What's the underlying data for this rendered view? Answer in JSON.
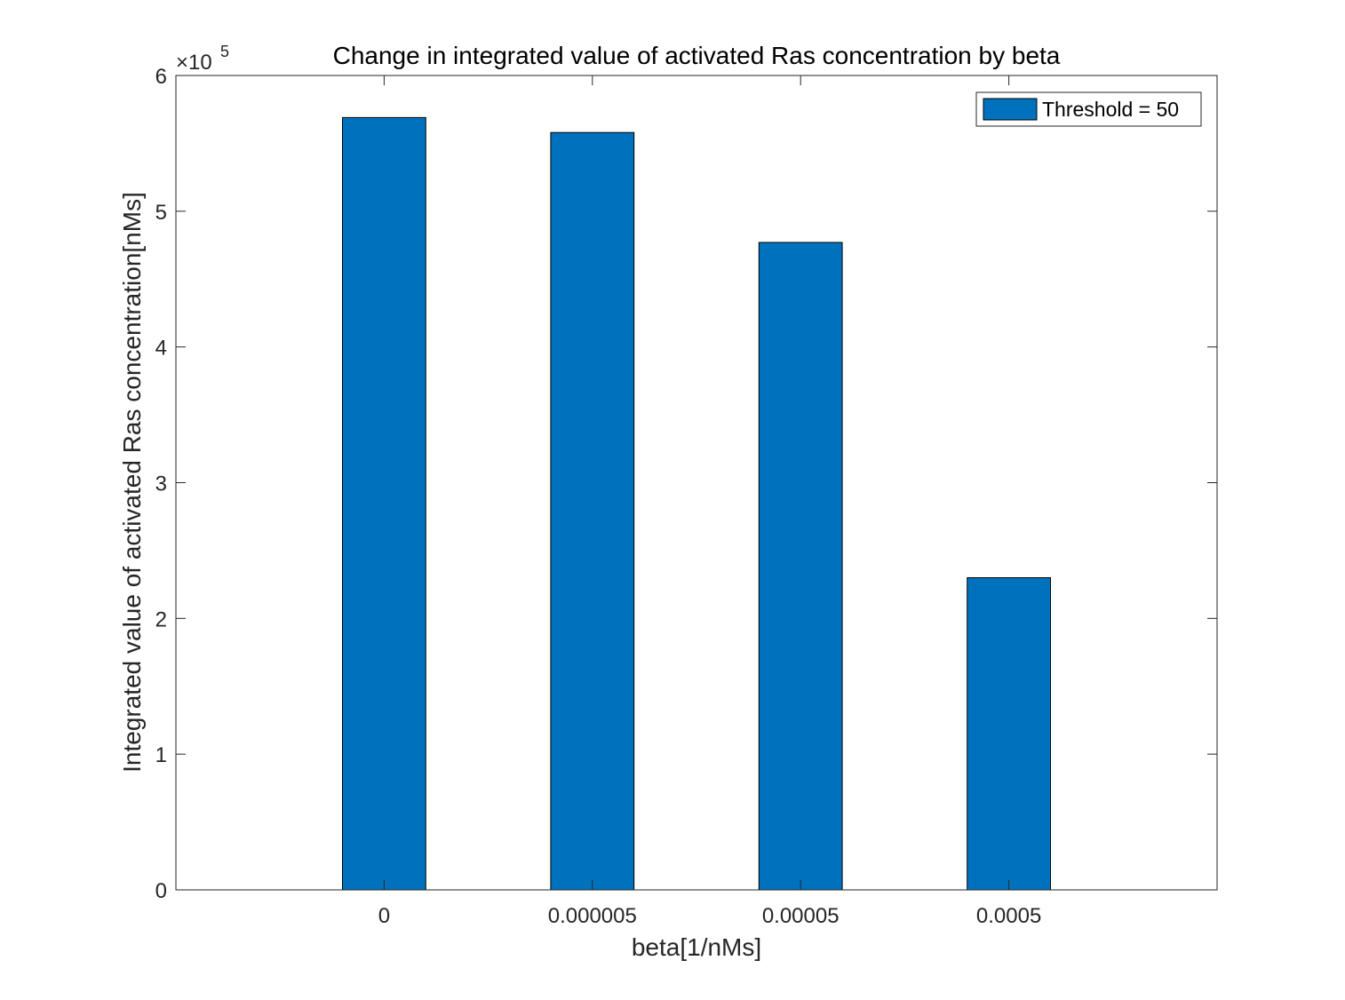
{
  "chart_data": {
    "type": "bar",
    "title": "Change in integrated value of activated Ras concentration by beta",
    "xlabel": "beta[1/nMs]",
    "ylabel": "Integrated value of activated Ras concentration[nMs]",
    "categories": [
      "0",
      "0.000005",
      "0.00005",
      "0.0005"
    ],
    "series": [
      {
        "name": "Threshold = 50",
        "values": [
          569000,
          558000,
          477000,
          230000
        ]
      }
    ],
    "ylim": [
      0,
      600000
    ],
    "xlim": [
      0,
      5
    ],
    "yticks": [
      0,
      100000,
      200000,
      300000,
      400000,
      500000,
      600000
    ],
    "ytick_labels": [
      "0",
      "1",
      "2",
      "3",
      "4",
      "5",
      "6"
    ],
    "y_exponent_label": {
      "base": "×10",
      "exponent": "5"
    },
    "legend_position": "top-right",
    "grid": false,
    "box": true,
    "bar_color": "#0072BD",
    "bar_edge_color": "#000000"
  }
}
